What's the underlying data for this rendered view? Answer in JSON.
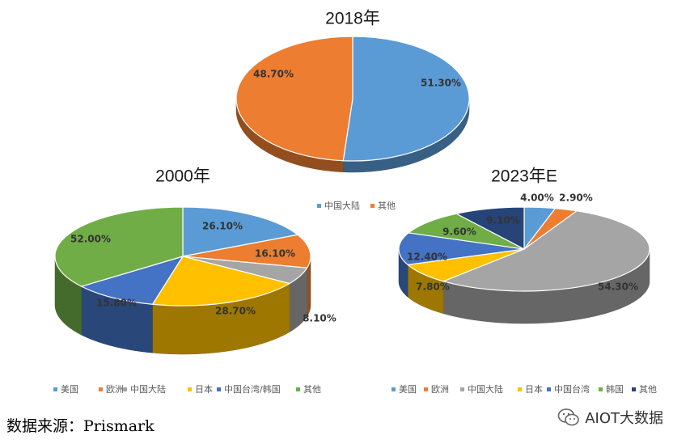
{
  "chart_data": [
    {
      "type": "pie",
      "title": "2018年",
      "categories": [
        "中国大陆",
        "其他"
      ],
      "values": [
        51.3,
        48.7
      ],
      "labels": [
        "51.30%",
        "48.70%"
      ],
      "colors": [
        "#5B9BD5",
        "#ED7D31"
      ],
      "legend": [
        "中国大陆",
        "其他"
      ],
      "legend_position": "bottom"
    },
    {
      "type": "pie",
      "title": "2000年",
      "categories": [
        "美国",
        "欧洲",
        "中国大陆",
        "日本",
        "中国台湾/韩国",
        "其他"
      ],
      "values": [
        26.1,
        16.1,
        8.1,
        28.7,
        15.8,
        52.0
      ],
      "labels": [
        "26.10%",
        "16.10%",
        "8.10%",
        "28.70%",
        "15.80%",
        "52.00%"
      ],
      "colors": [
        "#5B9BD5",
        "#ED7D31",
        "#A5A5A5",
        "#FFC000",
        "#4472C4",
        "#70AD47"
      ],
      "legend": [
        "美国",
        "欧洲",
        "中国大陆",
        "日本",
        "中国台湾/韩国",
        "其他"
      ],
      "legend_position": "bottom"
    },
    {
      "type": "pie",
      "title": "2023年E",
      "categories": [
        "美国",
        "欧洲",
        "中国大陆",
        "日本",
        "中国台湾",
        "韩国",
        "其他"
      ],
      "values": [
        4.0,
        2.9,
        54.3,
        7.8,
        12.4,
        9.6,
        9.1
      ],
      "labels": [
        "4.00%",
        "2.90%",
        "54.30%",
        "7.80%",
        "12.40%",
        "9.60%",
        "9.10%"
      ],
      "colors": [
        "#5B9BD5",
        "#ED7D31",
        "#A5A5A5",
        "#FFC000",
        "#4472C4",
        "#70AD47",
        "#264478"
      ],
      "legend": [
        "美国",
        "欧洲",
        "中国大陆",
        "日本",
        "中国台湾",
        "韩国",
        "其他"
      ],
      "legend_position": "bottom"
    }
  ],
  "footer": {
    "source": "数据来源：Prismark",
    "watermark": "AIOT大数据"
  }
}
